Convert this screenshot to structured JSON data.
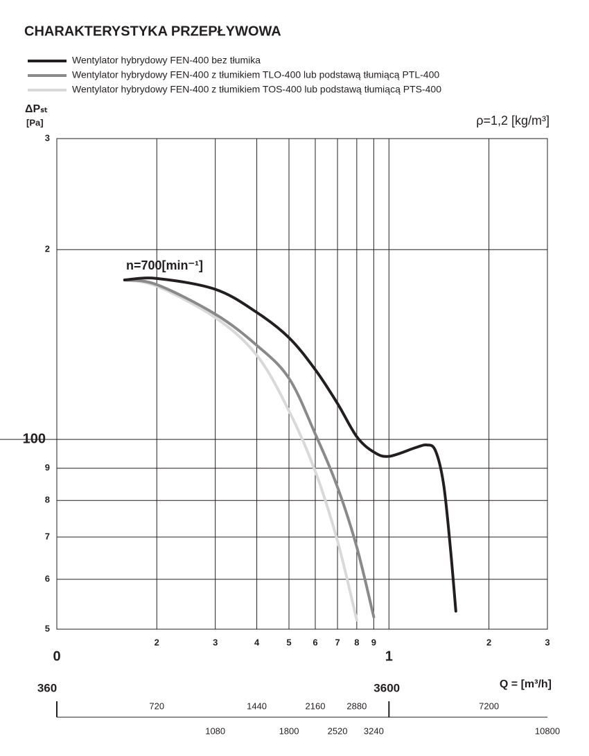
{
  "chart_data": {
    "type": "line",
    "title": "CHARAKTERYSTYKA PRZEPŁYWOWA",
    "ylabel": "ΔPₛₜ",
    "ylabel_unit": "[Pa]",
    "density_label": "ρ=1,2 [kg/m³]",
    "annotation": "n=700[min⁻¹]",
    "xscale": "log",
    "yscale": "log",
    "grid": true,
    "xlim": [
      0.1,
      3
    ],
    "xticks": [
      {
        "value": 0.1,
        "label": "0"
      },
      {
        "value": 0.2,
        "label": "2"
      },
      {
        "value": 0.3,
        "label": "3"
      },
      {
        "value": 0.4,
        "label": "4"
      },
      {
        "value": 0.5,
        "label": "5"
      },
      {
        "value": 0.6,
        "label": "6"
      },
      {
        "value": 0.7,
        "label": "7"
      },
      {
        "value": 0.8,
        "label": "8"
      },
      {
        "value": 0.9,
        "label": "9"
      },
      1,
      2,
      3
    ],
    "ylim": [
      50,
      300
    ],
    "yticks": [
      {
        "value": 50,
        "label": "5"
      },
      {
        "value": 60,
        "label": "6"
      },
      {
        "value": 70,
        "label": "7"
      },
      {
        "value": 80,
        "label": "8"
      },
      {
        "value": 90,
        "label": "9"
      },
      100,
      {
        "value": 200,
        "label": "2"
      },
      {
        "value": 300,
        "label": "3"
      }
    ],
    "x2label": "Q = [m³/h]",
    "x2lim": [
      360,
      10800
    ],
    "x2ticks": [
      360,
      720,
      1080,
      1440,
      1800,
      2160,
      2520,
      2880,
      3240,
      3600,
      7200,
      10800
    ],
    "series": [
      {
        "name": "Wentylator hybrydowy FEN-400 bez tłumika",
        "color": "#231f20",
        "x": [
          0.16,
          0.2,
          0.3,
          0.4,
          0.5,
          0.6,
          0.7,
          0.8,
          0.9,
          1.0,
          1.2,
          1.3,
          1.38,
          1.46,
          1.53,
          1.59
        ],
        "values": [
          179,
          180,
          173,
          159,
          145,
          129,
          114,
          101,
          95.5,
          94,
          97,
          98,
          96,
          85,
          67.5,
          53.4
        ]
      },
      {
        "name": "Wentylator hybrydowy FEN-400 z tłumikiem TLO-400 lub podstawą tłumiącą PTL-400",
        "color": "#8a8a8a",
        "x": [
          0.16,
          0.2,
          0.3,
          0.4,
          0.5,
          0.6,
          0.7,
          0.8,
          0.9
        ],
        "values": [
          179,
          176,
          158,
          141,
          125,
          102,
          84,
          67.5,
          52.3
        ]
      },
      {
        "name": "Wentylator hybrydowy FEN-400 z tłumikiem TOS-400 lub podstawą tłumiącą PTS-400",
        "color": "#d9d9d9",
        "x": [
          0.16,
          0.2,
          0.3,
          0.4,
          0.5,
          0.6,
          0.7,
          0.8
        ],
        "values": [
          179,
          175,
          156,
          136,
          111,
          89,
          69,
          51.7
        ]
      }
    ]
  }
}
